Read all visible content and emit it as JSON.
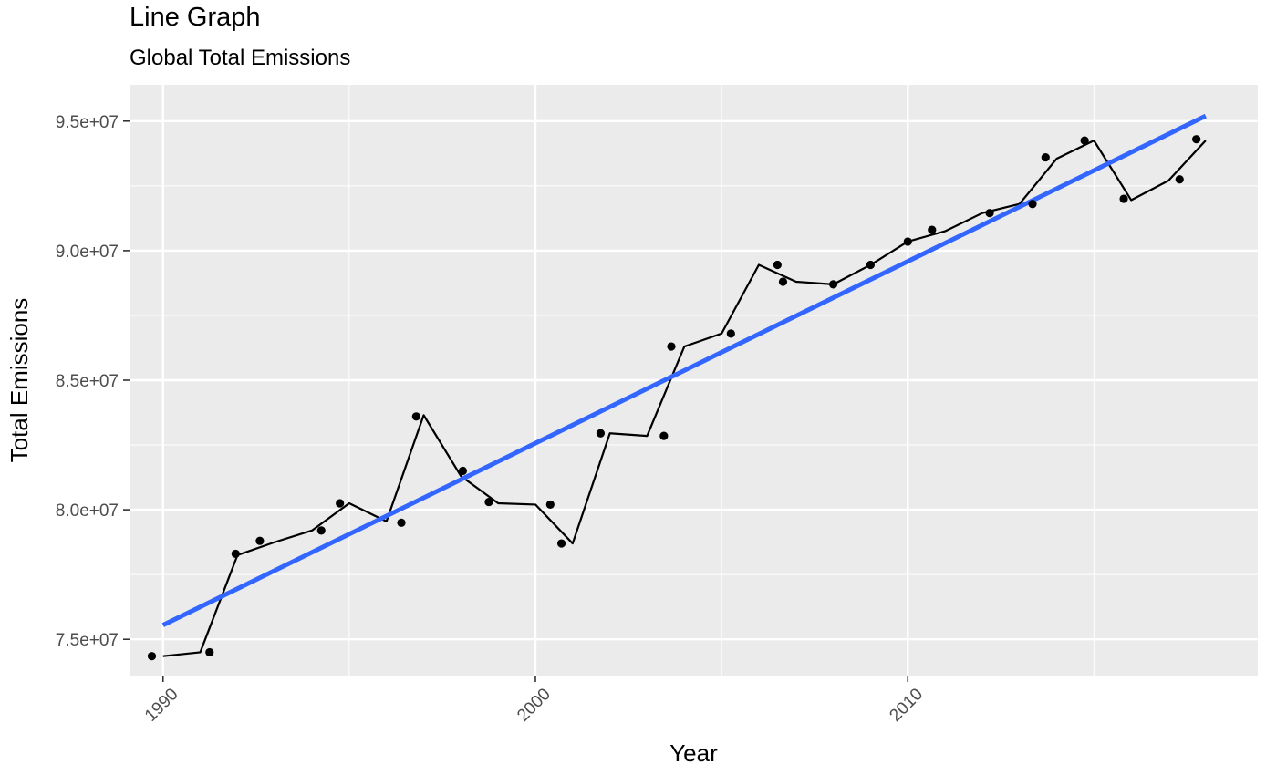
{
  "chart_data": {
    "type": "line",
    "title": "Line Graph",
    "subtitle": "Global Total Emissions",
    "xlabel": "Year",
    "ylabel": "Total Emissions",
    "xlim": [
      1989.1,
      2019.4
    ],
    "ylim": [
      73600000,
      96400000
    ],
    "x_ticks": [
      1990,
      2000,
      2010
    ],
    "x_tick_labels": [
      "1990",
      "2000",
      "2010"
    ],
    "y_ticks": [
      75000000,
      80000000,
      85000000,
      90000000,
      95000000
    ],
    "y_tick_labels": [
      "7.5e+07",
      "8.0e+07",
      "8.5e+07",
      "9.0e+07",
      "9.5e+07"
    ],
    "grid": true,
    "legend": "none",
    "colors": {
      "panel": "#ebebeb",
      "grid": "#ffffff",
      "line": "#000000",
      "points": "#000000",
      "trend": "#3366ff",
      "tick": "#4d4d4d"
    },
    "line": {
      "x": [
        1990,
        1991,
        1992,
        1993,
        1994,
        1995,
        1996,
        1997,
        1998,
        1999,
        2000,
        2001,
        2002,
        2003,
        2004,
        2005,
        2006,
        2007,
        2008,
        2009,
        2010,
        2011,
        2012,
        2013,
        2014,
        2015,
        2016,
        2017,
        2018
      ],
      "y": [
        74350000,
        74500000,
        78250000,
        78750000,
        79200000,
        80250000,
        79550000,
        83650000,
        81300000,
        80250000,
        80200000,
        78700000,
        82950000,
        82850000,
        86300000,
        86800000,
        89450000,
        88800000,
        88700000,
        89450000,
        90350000,
        90750000,
        91450000,
        91800000,
        93550000,
        94250000,
        91950000,
        92700000,
        94250000
      ]
    },
    "points": {
      "x": [
        1989.7,
        1991.25,
        1991.95,
        1992.6,
        1994.25,
        1994.75,
        1996.4,
        1996.8,
        1998.05,
        1998.75,
        2000.4,
        2000.7,
        2001.75,
        2003.45,
        2003.65,
        2005.25,
        2006.5,
        2006.65,
        2008.0,
        2009.0,
        2010.0,
        2010.65,
        2012.2,
        2013.35,
        2013.7,
        2014.75,
        2015.8,
        2017.3,
        2017.75
      ],
      "y": [
        74350000,
        74500000,
        78300000,
        78800000,
        79200000,
        80250000,
        79500000,
        83600000,
        81500000,
        80300000,
        80200000,
        78700000,
        82950000,
        82850000,
        86300000,
        86800000,
        89450000,
        88800000,
        88700000,
        89450000,
        90350000,
        90800000,
        91450000,
        91800000,
        93600000,
        94250000,
        92000000,
        92750000,
        94300000
      ]
    },
    "trend": {
      "x": [
        1990,
        2018
      ],
      "y": [
        75550000,
        95200000
      ]
    }
  }
}
